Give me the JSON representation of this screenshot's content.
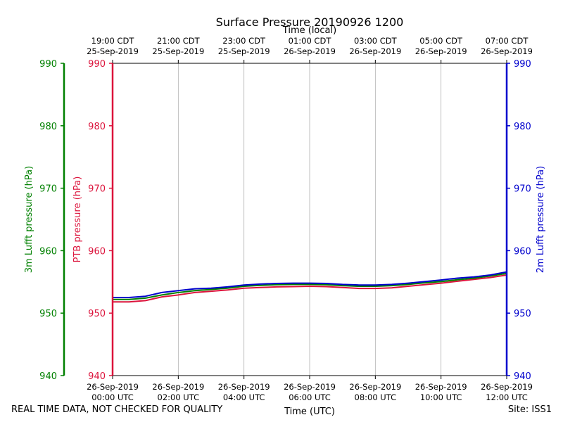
{
  "chart_data": {
    "type": "line",
    "title": "Surface Pressure 20190926 1200",
    "xlabel_bottom": "Time (UTC)",
    "xlabel_top": "Time (local)",
    "x_unit": "hours since 26-Sep-2019 00:00 UTC",
    "xlim": [
      0,
      12
    ],
    "ylim": [
      940,
      990
    ],
    "y_ticks": [
      940,
      950,
      960,
      970,
      980,
      990
    ],
    "bottom_ticks": [
      {
        "x": 0,
        "date": "26-Sep-2019",
        "time": "00:00 UTC"
      },
      {
        "x": 2,
        "date": "26-Sep-2019",
        "time": "02:00 UTC"
      },
      {
        "x": 4,
        "date": "26-Sep-2019",
        "time": "04:00 UTC"
      },
      {
        "x": 6,
        "date": "26-Sep-2019",
        "time": "06:00 UTC"
      },
      {
        "x": 8,
        "date": "26-Sep-2019",
        "time": "08:00 UTC"
      },
      {
        "x": 10,
        "date": "26-Sep-2019",
        "time": "10:00 UTC"
      },
      {
        "x": 12,
        "date": "26-Sep-2019",
        "time": "12:00 UTC"
      }
    ],
    "top_ticks": [
      {
        "x": 0,
        "time": "19:00 CDT",
        "date": "25-Sep-2019"
      },
      {
        "x": 2,
        "time": "21:00 CDT",
        "date": "25-Sep-2019"
      },
      {
        "x": 4,
        "time": "23:00 CDT",
        "date": "25-Sep-2019"
      },
      {
        "x": 6,
        "time": "01:00 CDT",
        "date": "26-Sep-2019"
      },
      {
        "x": 8,
        "time": "03:00 CDT",
        "date": "26-Sep-2019"
      },
      {
        "x": 10,
        "time": "05:00 CDT",
        "date": "26-Sep-2019"
      },
      {
        "x": 12,
        "time": "07:00 CDT",
        "date": "26-Sep-2019"
      }
    ],
    "axes": [
      {
        "name": "3m Lufft pressure (hPa)",
        "color": "#008000",
        "side": "far-left"
      },
      {
        "name": "PTB pressure (hPa)",
        "color": "#dc143c",
        "side": "left"
      },
      {
        "name": "2m Lufft pressure (hPa)",
        "color": "#0000cd",
        "side": "right"
      }
    ],
    "x": [
      0,
      0.5,
      1,
      1.5,
      2,
      2.5,
      3,
      3.5,
      4,
      4.5,
      5,
      5.5,
      6,
      6.5,
      7,
      7.5,
      8,
      8.5,
      9,
      9.5,
      10,
      10.5,
      11,
      11.5,
      12
    ],
    "series": [
      {
        "name": "PTB pressure",
        "color": "#dc143c",
        "values": [
          951.8,
          951.8,
          952.0,
          952.6,
          952.9,
          953.3,
          953.5,
          953.7,
          954.0,
          954.1,
          954.2,
          954.25,
          954.3,
          954.25,
          954.1,
          953.95,
          953.95,
          954.05,
          954.3,
          954.55,
          954.8,
          955.1,
          955.4,
          955.7,
          956.1
        ]
      },
      {
        "name": "3m Lufft pressure",
        "color": "#008000",
        "values": [
          952.2,
          952.2,
          952.4,
          952.9,
          953.3,
          953.6,
          953.8,
          954.0,
          954.3,
          954.45,
          954.55,
          954.6,
          954.6,
          954.55,
          954.4,
          954.3,
          954.3,
          954.4,
          954.6,
          954.85,
          955.05,
          955.35,
          955.6,
          955.95,
          956.35
        ]
      },
      {
        "name": "2m Lufft pressure",
        "color": "#0000cd",
        "values": [
          952.5,
          952.5,
          952.7,
          953.3,
          953.6,
          953.9,
          954.0,
          954.2,
          954.5,
          954.65,
          954.75,
          954.8,
          954.8,
          954.75,
          954.6,
          954.5,
          954.5,
          954.6,
          954.8,
          955.05,
          955.3,
          955.6,
          955.8,
          956.1,
          956.6
        ]
      }
    ]
  },
  "footer": {
    "quality_note": "REAL TIME DATA, NOT CHECKED FOR QUALITY",
    "site": "Site: ISS1"
  }
}
